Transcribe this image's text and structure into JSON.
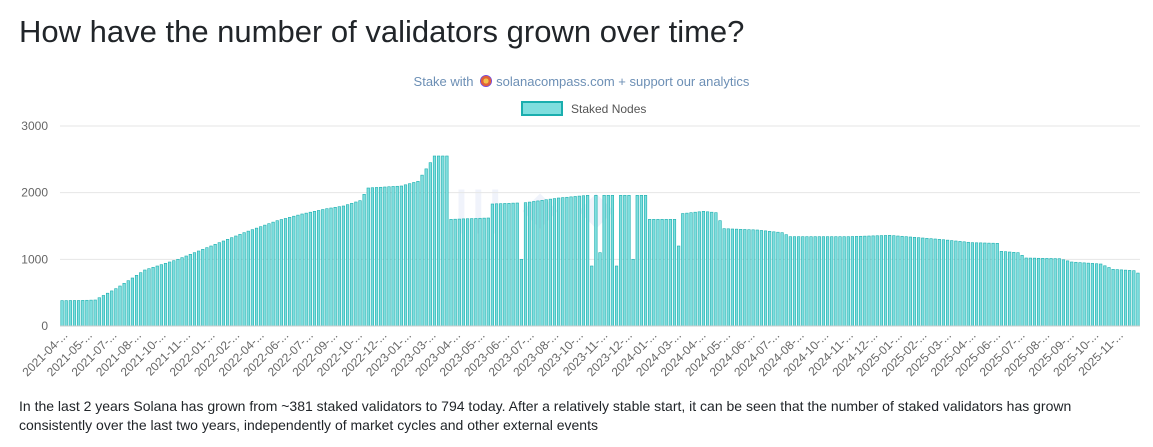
{
  "page": {
    "title": "How have the number of validators grown over time?",
    "stake_prefix": "Stake with",
    "stake_site": "solanacompass.com",
    "stake_suffix": "+ support our analytics",
    "caption": "In the last 2 years Solana has grown from ~381 staked validators to 794 today. After a relatively stable start, it can be seen that the number of staked validators has grown consistently over the last two years, independently of market cycles and other external events"
  },
  "colors": {
    "bar_fill": "#7fdede",
    "bar_stroke": "#1aaeae",
    "grid": "#e6e6e6",
    "axis_text": "#666666"
  },
  "icons": {
    "site_logo": "compass-icon"
  },
  "chart_data": {
    "type": "bar",
    "title": "",
    "xlabel": "",
    "ylabel": "",
    "ylim": [
      0,
      3000
    ],
    "yticks": [
      0,
      1000,
      2000,
      3000
    ],
    "grid": true,
    "legend_position": "top-center",
    "x_tick_labels": [
      "2021-04-...",
      "2021-05-...",
      "2021-07-...",
      "2021-08-...",
      "2021-10-...",
      "2021-11-...",
      "2022-01-...",
      "2022-02-...",
      "2022-04-...",
      "2022-06-...",
      "2022-07-...",
      "2022-09-...",
      "2022-10-...",
      "2022-12-...",
      "2023-01-...",
      "2023-03-...",
      "2023-04-...",
      "2023-05-...",
      "2023-06-...",
      "2023-07-...",
      "2023-08-...",
      "2023-10-...",
      "2023-11-...",
      "2023-12-...",
      "2024-01-...",
      "2024-03-...",
      "2024-04-...",
      "2024-05-...",
      "2024-06-...",
      "2024-07-...",
      "2024-08-...",
      "2024-10-...",
      "2024-11-...",
      "2024-12-...",
      "2025-01-...",
      "2025-02-...",
      "2025-03-...",
      "2025-04-...",
      "2025-06-...",
      "2025-07-...",
      "2025-08-...",
      "2025-09-...",
      "2025-10-...",
      "2025-11-..."
    ],
    "series": [
      {
        "name": "Staked Nodes",
        "trend": [
          {
            "x": 0,
            "y": 381
          },
          {
            "x": 4,
            "y": 382
          },
          {
            "x": 8,
            "y": 390
          },
          {
            "x": 13,
            "y": 560
          },
          {
            "x": 20,
            "y": 840
          },
          {
            "x": 28,
            "y": 1000
          },
          {
            "x": 36,
            "y": 1200
          },
          {
            "x": 44,
            "y": 1400
          },
          {
            "x": 52,
            "y": 1580
          },
          {
            "x": 58,
            "y": 1680
          },
          {
            "x": 64,
            "y": 1760
          },
          {
            "x": 68,
            "y": 1800
          },
          {
            "x": 72,
            "y": 1880
          },
          {
            "x": 74,
            "y": 2070
          },
          {
            "x": 82,
            "y": 2100
          },
          {
            "x": 86,
            "y": 2170
          },
          {
            "x": 89,
            "y": 2450
          },
          {
            "x": 90,
            "y": 2550
          },
          {
            "x": 93,
            "y": 2550
          },
          {
            "x": 94,
            "y": 1600
          },
          {
            "x": 103,
            "y": 1620
          },
          {
            "x": 104,
            "y": 1830
          },
          {
            "x": 112,
            "y": 1850
          },
          {
            "x": 120,
            "y": 1920
          },
          {
            "x": 127,
            "y": 1960
          },
          {
            "x": 141,
            "y": 1960
          },
          {
            "x": 142,
            "y": 1600
          },
          {
            "x": 148,
            "y": 1600
          },
          {
            "x": 149,
            "y": 1680
          },
          {
            "x": 155,
            "y": 1720
          },
          {
            "x": 158,
            "y": 1700
          },
          {
            "x": 160,
            "y": 1460
          },
          {
            "x": 168,
            "y": 1440
          },
          {
            "x": 174,
            "y": 1400
          },
          {
            "x": 176,
            "y": 1340
          },
          {
            "x": 190,
            "y": 1340
          },
          {
            "x": 200,
            "y": 1360
          },
          {
            "x": 212,
            "y": 1300
          },
          {
            "x": 220,
            "y": 1250
          },
          {
            "x": 226,
            "y": 1240
          },
          {
            "x": 227,
            "y": 1120
          },
          {
            "x": 231,
            "y": 1100
          },
          {
            "x": 233,
            "y": 1020
          },
          {
            "x": 241,
            "y": 1010
          },
          {
            "x": 244,
            "y": 960
          },
          {
            "x": 251,
            "y": 930
          },
          {
            "x": 254,
            "y": 850
          },
          {
            "x": 259,
            "y": 830
          },
          {
            "x": 260,
            "y": 794
          }
        ],
        "dips": [
          {
            "x": 111,
            "y": 1000
          },
          {
            "x": 128,
            "y": 900
          },
          {
            "x": 130,
            "y": 1100
          },
          {
            "x": 134,
            "y": 900
          },
          {
            "x": 138,
            "y": 1000
          },
          {
            "x": 149,
            "y": 1200
          }
        ]
      }
    ]
  }
}
